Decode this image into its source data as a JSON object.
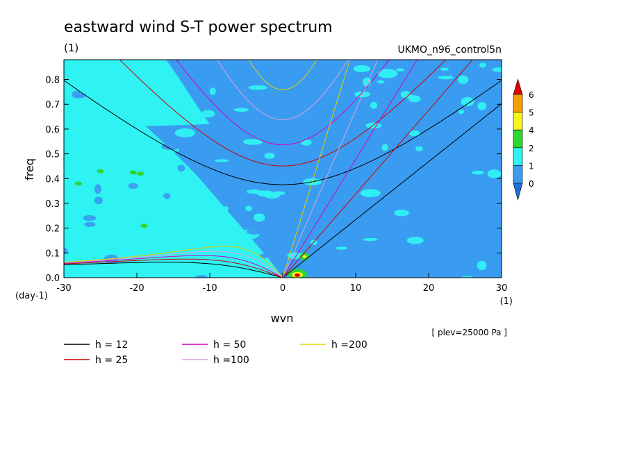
{
  "chart_data": {
    "type": "heatmap",
    "title": "eastward wind S-T power spectrum",
    "title_units": "(1)",
    "dataset": "UKMO_n96_control5n",
    "xlabel": "wvn",
    "x_units": "(1)",
    "ylabel": "freq",
    "y_units": "(day-1)",
    "xlim": [
      -30,
      30
    ],
    "ylim": [
      0,
      0.88
    ],
    "x_ticks": [
      "-30",
      "-20",
      "-10",
      "0",
      "10",
      "20",
      "30"
    ],
    "y_ticks": [
      "0.0",
      "0.1",
      "0.2",
      "0.3",
      "0.4",
      "0.5",
      "0.6",
      "0.7",
      "0.8"
    ],
    "plev_note": "[ plev=25000 Pa ]",
    "colorbar": {
      "levels": [
        "0",
        "1",
        "2",
        "4",
        "5",
        "6"
      ],
      "colors": [
        "#1f6fdc",
        "#3a9cf0",
        "#2ff2f2",
        "#2fd62f",
        "#f5f520",
        "#f5a000",
        "#e00000"
      ]
    },
    "dispersion_curves": [
      {
        "label": "h = 12",
        "h": 12,
        "color": "#000000"
      },
      {
        "label": "h = 25",
        "h": 25,
        "color": "#cc0000"
      },
      {
        "label": "h = 50",
        "h": 50,
        "color": "#d000c0"
      },
      {
        "label": "h =100",
        "h": 100,
        "color": "#e0a0e0"
      },
      {
        "label": "h =200",
        "h": 200,
        "color": "#e6d000"
      }
    ]
  }
}
